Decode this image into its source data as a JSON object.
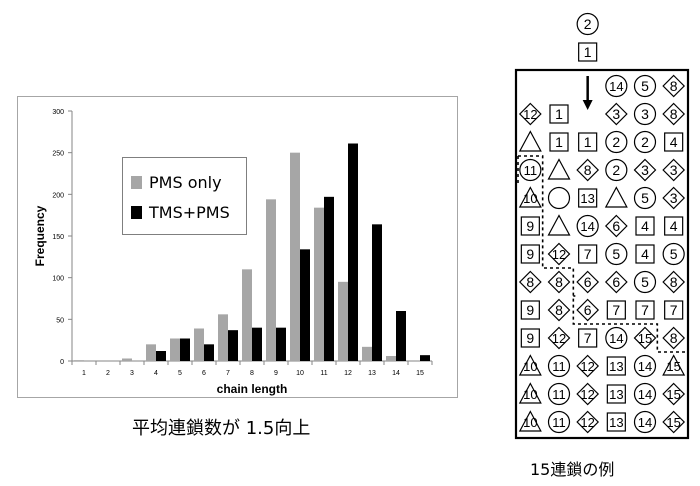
{
  "chart_data": {
    "type": "bar",
    "title": "",
    "xlabel": "chain length",
    "ylabel": "Frequency",
    "categories": [
      "1",
      "2",
      "3",
      "4",
      "5",
      "6",
      "7",
      "8",
      "9",
      "10",
      "11",
      "12",
      "13",
      "14",
      "15"
    ],
    "ylim": [
      0,
      300
    ],
    "yticks": [
      "0",
      "50",
      "100",
      "150",
      "200",
      "250",
      "300"
    ],
    "grid": false,
    "legend": "upper-left inside plot",
    "series": [
      {
        "name": "PMS only",
        "color": "#a6a6a6",
        "values": [
          1,
          0,
          3,
          20,
          27,
          39,
          56,
          110,
          194,
          250,
          184,
          95,
          17,
          6,
          0
        ]
      },
      {
        "name": "TMS+PMS",
        "color": "#000000",
        "values": [
          0,
          0,
          0,
          12,
          27,
          20,
          37,
          40,
          40,
          134,
          197,
          261,
          164,
          60,
          7
        ]
      }
    ]
  },
  "captions": {
    "left": "平均連鎖数が 1.5向上",
    "right": "15連鎖の例"
  },
  "example_grid": {
    "falling": {
      "top": "2",
      "top_shape": "circle",
      "bottom": "1",
      "bottom_shape": "square"
    },
    "rows": [
      [
        null,
        null,
        null,
        {
          "n": "14",
          "s": "circle"
        },
        {
          "n": "5",
          "s": "circle"
        },
        {
          "n": "8",
          "s": "diamond"
        }
      ],
      [
        {
          "n": "12",
          "s": "diamond"
        },
        {
          "n": "1",
          "s": "square"
        },
        null,
        {
          "n": "3",
          "s": "diamond"
        },
        {
          "n": "3",
          "s": "circle"
        },
        {
          "n": "8",
          "s": "diamond"
        }
      ],
      [
        {
          "n": "",
          "s": "triangle"
        },
        {
          "n": "1",
          "s": "square"
        },
        {
          "n": "1",
          "s": "square"
        },
        {
          "n": "2",
          "s": "circle"
        },
        {
          "n": "2",
          "s": "circle"
        },
        {
          "n": "4",
          "s": "square"
        }
      ],
      [
        {
          "n": "11",
          "s": "circle"
        },
        {
          "n": "",
          "s": "triangle"
        },
        {
          "n": "8",
          "s": "diamond"
        },
        {
          "n": "2",
          "s": "circle"
        },
        {
          "n": "3",
          "s": "diamond"
        },
        {
          "n": "3",
          "s": "diamond"
        }
      ],
      [
        {
          "n": "10",
          "s": "triangle"
        },
        {
          "n": "",
          "s": "circle"
        },
        {
          "n": "13",
          "s": "square"
        },
        {
          "n": "",
          "s": "triangle"
        },
        {
          "n": "5",
          "s": "circle"
        },
        {
          "n": "3",
          "s": "diamond"
        }
      ],
      [
        {
          "n": "9",
          "s": "square"
        },
        {
          "n": "",
          "s": "triangle"
        },
        {
          "n": "14",
          "s": "circle"
        },
        {
          "n": "6",
          "s": "diamond"
        },
        {
          "n": "4",
          "s": "square"
        },
        {
          "n": "4",
          "s": "square"
        }
      ],
      [
        {
          "n": "9",
          "s": "square"
        },
        {
          "n": "12",
          "s": "diamond"
        },
        {
          "n": "7",
          "s": "square"
        },
        {
          "n": "5",
          "s": "circle"
        },
        {
          "n": "4",
          "s": "square"
        },
        {
          "n": "5",
          "s": "circle"
        }
      ],
      [
        {
          "n": "8",
          "s": "diamond"
        },
        {
          "n": "8",
          "s": "diamond"
        },
        {
          "n": "6",
          "s": "diamond"
        },
        {
          "n": "6",
          "s": "diamond"
        },
        {
          "n": "5",
          "s": "circle"
        },
        {
          "n": "8",
          "s": "diamond"
        }
      ],
      [
        {
          "n": "9",
          "s": "square"
        },
        {
          "n": "8",
          "s": "diamond"
        },
        {
          "n": "6",
          "s": "diamond"
        },
        {
          "n": "7",
          "s": "square"
        },
        {
          "n": "7",
          "s": "square"
        },
        {
          "n": "7",
          "s": "square"
        }
      ],
      [
        {
          "n": "9",
          "s": "square"
        },
        {
          "n": "12",
          "s": "diamond"
        },
        {
          "n": "7",
          "s": "square"
        },
        {
          "n": "14",
          "s": "circle"
        },
        {
          "n": "15",
          "s": "diamond"
        },
        {
          "n": "8",
          "s": "diamond"
        }
      ],
      [
        {
          "n": "10",
          "s": "triangle"
        },
        {
          "n": "11",
          "s": "circle"
        },
        {
          "n": "12",
          "s": "diamond"
        },
        {
          "n": "13",
          "s": "square"
        },
        {
          "n": "14",
          "s": "circle"
        },
        {
          "n": "15",
          "s": "triangle"
        }
      ],
      [
        {
          "n": "10",
          "s": "triangle"
        },
        {
          "n": "11",
          "s": "circle"
        },
        {
          "n": "12",
          "s": "diamond"
        },
        {
          "n": "13",
          "s": "square"
        },
        {
          "n": "14",
          "s": "circle"
        },
        {
          "n": "15",
          "s": "diamond"
        }
      ],
      [
        {
          "n": "10",
          "s": "triangle"
        },
        {
          "n": "11",
          "s": "circle"
        },
        {
          "n": "12",
          "s": "diamond"
        },
        {
          "n": "13",
          "s": "square"
        },
        {
          "n": "14",
          "s": "circle"
        },
        {
          "n": "15",
          "s": "diamond"
        }
      ]
    ]
  }
}
